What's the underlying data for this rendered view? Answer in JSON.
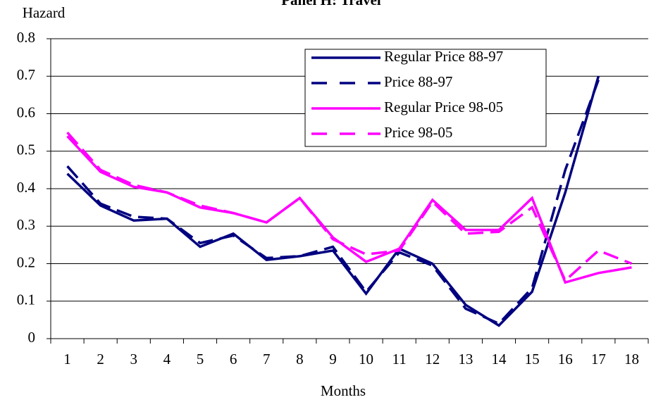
{
  "chart_data": {
    "type": "line",
    "title": "Panel H: Travel",
    "y_label": "Hazard",
    "x_label": "Months",
    "categories": [
      "1",
      "2",
      "3",
      "4",
      "5",
      "6",
      "7",
      "8",
      "9",
      "10",
      "11",
      "12",
      "13",
      "14",
      "15",
      "16",
      "17",
      "18"
    ],
    "ylim": [
      0,
      0.8
    ],
    "yticks": [
      0,
      0.1,
      0.2,
      0.3,
      0.4,
      0.5,
      0.6,
      0.7,
      0.8
    ],
    "grid": true,
    "legend": "top-right",
    "series": [
      {
        "name": "Regular Price 88-97",
        "color": "#000080",
        "dash": false,
        "values": [
          0.44,
          0.355,
          0.315,
          0.32,
          0.245,
          0.28,
          0.21,
          0.22,
          0.235,
          0.12,
          0.24,
          0.2,
          0.09,
          0.035,
          0.125,
          0.39,
          0.7,
          null
        ]
      },
      {
        "name": "Price 88-97",
        "color": "#000080",
        "dash": true,
        "values": [
          0.46,
          0.36,
          0.325,
          0.32,
          0.255,
          0.275,
          0.215,
          0.22,
          0.245,
          0.125,
          0.23,
          0.195,
          0.08,
          0.04,
          0.135,
          0.45,
          0.69,
          null
        ]
      },
      {
        "name": "Regular Price 98-05",
        "color": "#ff00ff",
        "dash": false,
        "values": [
          0.54,
          0.445,
          0.405,
          0.39,
          0.35,
          0.335,
          0.31,
          0.375,
          0.27,
          0.205,
          0.24,
          0.37,
          0.29,
          0.29,
          0.375,
          0.15,
          0.175,
          0.19
        ]
      },
      {
        "name": "Price 98-05",
        "color": "#ff00ff",
        "dash": true,
        "values": [
          0.55,
          0.45,
          0.41,
          0.39,
          0.355,
          0.335,
          0.31,
          0.375,
          0.265,
          0.225,
          0.235,
          0.365,
          0.28,
          0.285,
          0.35,
          0.155,
          0.235,
          0.2
        ]
      }
    ]
  }
}
